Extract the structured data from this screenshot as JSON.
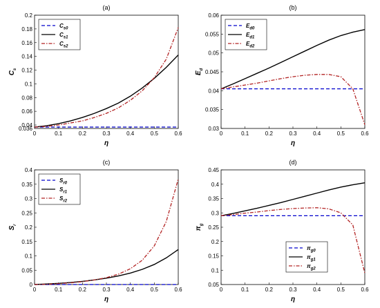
{
  "chart_data": [
    {
      "type": "line",
      "panel_label": "(a)",
      "xlabel": "η",
      "ylabel_main": "C",
      "ylabel_sub": "s",
      "xlim": [
        0,
        0.6
      ],
      "ylim": [
        0.035,
        0.2
      ],
      "xticks": [
        "0",
        "0.1",
        "0.2",
        "0.3",
        "0.4",
        "0.5",
        "0.6"
      ],
      "yticks": [
        "0.04",
        "0.06",
        "0.08",
        "0.1",
        "0.12",
        "0.14",
        "0.16",
        "0.18",
        "0.2"
      ],
      "ytick_values": [
        0.04,
        0.06,
        0.08,
        0.1,
        0.12,
        0.14,
        0.16,
        0.18,
        0.2
      ],
      "yaxis_bottom_label": "0.036",
      "legend_position": "top-left",
      "x": [
        0,
        0.05,
        0.1,
        0.15,
        0.2,
        0.25,
        0.3,
        0.35,
        0.4,
        0.45,
        0.5,
        0.55,
        0.6
      ],
      "series": [
        {
          "name_main": "C",
          "name_sub": "s0",
          "style": "dashed",
          "color": "#0000cc",
          "values": [
            0.037,
            0.037,
            0.037,
            0.037,
            0.037,
            0.037,
            0.037,
            0.037,
            0.037,
            0.037,
            0.037,
            0.037,
            0.037
          ]
        },
        {
          "name_main": "C",
          "name_sub": "s1",
          "style": "solid",
          "color": "#000000",
          "values": [
            0.037,
            0.039,
            0.042,
            0.046,
            0.051,
            0.057,
            0.064,
            0.072,
            0.082,
            0.094,
            0.108,
            0.124,
            0.142
          ]
        },
        {
          "name_main": "C",
          "name_sub": "s2",
          "style": "dashdot",
          "color": "#b22222",
          "values": [
            0.037,
            0.038,
            0.04,
            0.043,
            0.046,
            0.051,
            0.057,
            0.065,
            0.076,
            0.09,
            0.109,
            0.136,
            0.182
          ]
        }
      ]
    },
    {
      "type": "line",
      "panel_label": "(b)",
      "xlabel": "η",
      "ylabel_main": "E",
      "ylabel_sub": "d",
      "xlim": [
        0,
        0.6
      ],
      "ylim": [
        0.03,
        0.06
      ],
      "xticks": [
        "0",
        "0.1",
        "0.2",
        "0.3",
        "0.4",
        "0.5",
        "0.6"
      ],
      "yticks": [
        "0.03",
        "0.035",
        "0.04",
        "0.045",
        "0.05",
        "0.055",
        "0.06"
      ],
      "ytick_values": [
        0.03,
        0.035,
        0.04,
        0.045,
        0.05,
        0.055,
        0.06
      ],
      "legend_position": "top-left",
      "x": [
        0,
        0.05,
        0.1,
        0.15,
        0.2,
        0.25,
        0.3,
        0.35,
        0.4,
        0.45,
        0.5,
        0.55,
        0.6
      ],
      "series": [
        {
          "name_main": "E",
          "name_sub": "d0",
          "style": "dashed",
          "color": "#0000cc",
          "values": [
            0.0405,
            0.0405,
            0.0405,
            0.0405,
            0.0405,
            0.0405,
            0.0405,
            0.0405,
            0.0405,
            0.0405,
            0.0405,
            0.0405,
            0.0405
          ]
        },
        {
          "name_main": "E",
          "name_sub": "d1",
          "style": "solid",
          "color": "#000000",
          "values": [
            0.0405,
            0.0418,
            0.0432,
            0.0446,
            0.046,
            0.0475,
            0.049,
            0.0505,
            0.052,
            0.0534,
            0.0546,
            0.0555,
            0.0562
          ]
        },
        {
          "name_main": "E",
          "name_sub": "d2",
          "style": "dashdot",
          "color": "#b22222",
          "values": [
            0.0405,
            0.041,
            0.0415,
            0.042,
            0.0426,
            0.0432,
            0.0437,
            0.0441,
            0.0443,
            0.0443,
            0.0437,
            0.0405,
            0.031
          ]
        }
      ]
    },
    {
      "type": "line",
      "panel_label": "(c)",
      "xlabel": "η",
      "ylabel_main": "S",
      "ylabel_sub": "r",
      "xlim": [
        0,
        0.6
      ],
      "ylim": [
        0,
        0.4
      ],
      "xticks": [
        "0",
        "0.1",
        "0.2",
        "0.3",
        "0.4",
        "0.5",
        "0.6"
      ],
      "yticks": [
        "0",
        "0.05",
        "0.1",
        "0.15",
        "0.2",
        "0.25",
        "0.3",
        "0.35",
        "0.4"
      ],
      "ytick_values": [
        0,
        0.05,
        0.1,
        0.15,
        0.2,
        0.25,
        0.3,
        0.35,
        0.4
      ],
      "legend_position": "top-left",
      "x": [
        0,
        0.05,
        0.1,
        0.15,
        0.2,
        0.25,
        0.3,
        0.35,
        0.4,
        0.45,
        0.5,
        0.55,
        0.6
      ],
      "series": [
        {
          "name_main": "S",
          "name_sub": "r0",
          "style": "dashed",
          "color": "#0000cc",
          "values": [
            0,
            0,
            0,
            0,
            0,
            0,
            0,
            0,
            0,
            0,
            0,
            0,
            0
          ]
        },
        {
          "name_main": "S",
          "name_sub": "r1",
          "style": "solid",
          "color": "#000000",
          "values": [
            0,
            0.002,
            0.004,
            0.007,
            0.011,
            0.016,
            0.022,
            0.03,
            0.04,
            0.053,
            0.07,
            0.093,
            0.122
          ]
        },
        {
          "name_main": "S",
          "name_sub": "r2",
          "style": "dashdot",
          "color": "#b22222",
          "values": [
            0,
            0.001,
            0.003,
            0.006,
            0.01,
            0.016,
            0.024,
            0.036,
            0.055,
            0.085,
            0.135,
            0.22,
            0.368
          ]
        }
      ]
    },
    {
      "type": "line",
      "panel_label": "(d)",
      "xlabel": "η",
      "ylabel_main": "π",
      "ylabel_sub": "g",
      "xlim": [
        0,
        0.6
      ],
      "ylim": [
        0.05,
        0.45
      ],
      "xticks": [
        "0",
        "0.1",
        "0.2",
        "0.3",
        "0.4",
        "0.5",
        "0.6"
      ],
      "yticks": [
        "0.05",
        "0.1",
        "0.15",
        "0.2",
        "0.25",
        "0.3",
        "0.35",
        "0.4",
        "0.45"
      ],
      "ytick_values": [
        0.05,
        0.1,
        0.15,
        0.2,
        0.25,
        0.3,
        0.35,
        0.4,
        0.45
      ],
      "legend_position": "bottom-left",
      "x": [
        0,
        0.05,
        0.1,
        0.15,
        0.2,
        0.25,
        0.3,
        0.35,
        0.4,
        0.45,
        0.5,
        0.55,
        0.6
      ],
      "series": [
        {
          "name_main": "π",
          "name_sub": "g0",
          "style": "dashed",
          "color": "#0000cc",
          "values": [
            0.29,
            0.29,
            0.29,
            0.29,
            0.29,
            0.29,
            0.29,
            0.29,
            0.29,
            0.29,
            0.29,
            0.29,
            0.29
          ]
        },
        {
          "name_main": "π",
          "name_sub": "g1",
          "style": "solid",
          "color": "#000000",
          "values": [
            0.29,
            0.298,
            0.307,
            0.316,
            0.326,
            0.336,
            0.347,
            0.358,
            0.369,
            0.38,
            0.39,
            0.398,
            0.405
          ]
        },
        {
          "name_main": "π",
          "name_sub": "g2",
          "style": "dashdot",
          "color": "#b22222",
          "values": [
            0.29,
            0.294,
            0.299,
            0.303,
            0.308,
            0.312,
            0.315,
            0.317,
            0.318,
            0.314,
            0.3,
            0.258,
            0.09
          ]
        }
      ]
    }
  ]
}
